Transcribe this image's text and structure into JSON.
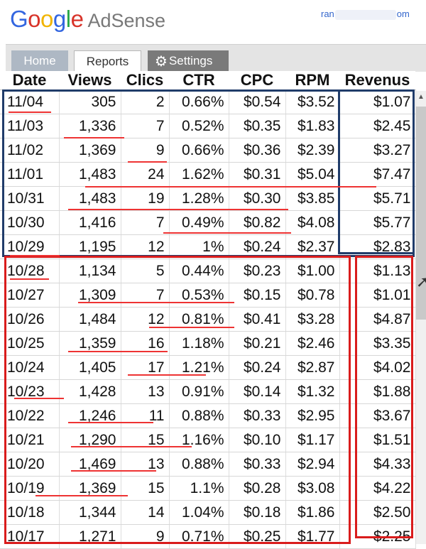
{
  "app": {
    "logo_letters": [
      "G",
      "o",
      "o",
      "g",
      "l",
      "e"
    ],
    "product": "AdSense",
    "account_prefix": "ran",
    "account_suffix": "om"
  },
  "tabs": [
    {
      "label": "Home",
      "state": "inactive"
    },
    {
      "label": "Reports",
      "state": "active"
    },
    {
      "label": "Settings",
      "state": "inactive",
      "icon": "gear-icon"
    }
  ],
  "table": {
    "columns": [
      "Date",
      "Views",
      "Clics",
      "CTR",
      "CPC",
      "RPM",
      "Revenus"
    ],
    "rows": [
      [
        "11/04",
        "305",
        "2",
        "0.66%",
        "$0.54",
        "$3.52",
        "$1.07"
      ],
      [
        "11/03",
        "1,336",
        "7",
        "0.52%",
        "$0.35",
        "$1.83",
        "$2.45"
      ],
      [
        "11/02",
        "1,369",
        "9",
        "0.66%",
        "$0.36",
        "$2.39",
        "$3.27"
      ],
      [
        "11/01",
        "1,483",
        "24",
        "1.62%",
        "$0.31",
        "$5.04",
        "$7.47"
      ],
      [
        "10/31",
        "1,483",
        "19",
        "1.28%",
        "$0.30",
        "$3.85",
        "$5.71"
      ],
      [
        "10/30",
        "1,416",
        "7",
        "0.49%",
        "$0.82",
        "$4.08",
        "$5.77"
      ],
      [
        "10/29",
        "1,195",
        "12",
        "1%",
        "$0.24",
        "$2.37",
        "$2.83"
      ],
      [
        "10/28",
        "1,134",
        "5",
        "0.44%",
        "$0.23",
        "$1.00",
        "$1.13"
      ],
      [
        "10/27",
        "1,309",
        "7",
        "0.53%",
        "$0.15",
        "$0.78",
        "$1.01"
      ],
      [
        "10/26",
        "1,484",
        "12",
        "0.81%",
        "$0.41",
        "$3.28",
        "$4.87"
      ],
      [
        "10/25",
        "1,359",
        "16",
        "1.18%",
        "$0.21",
        "$2.46",
        "$3.35"
      ],
      [
        "10/24",
        "1,405",
        "17",
        "1.21%",
        "$0.24",
        "$2.87",
        "$4.02"
      ],
      [
        "10/23",
        "1,428",
        "13",
        "0.91%",
        "$0.14",
        "$1.32",
        "$1.88"
      ],
      [
        "10/22",
        "1,246",
        "11",
        "0.88%",
        "$0.33",
        "$2.95",
        "$3.67"
      ],
      [
        "10/21",
        "1,290",
        "15",
        "1.16%",
        "$0.10",
        "$1.17",
        "$1.51"
      ],
      [
        "10/20",
        "1,469",
        "13",
        "0.88%",
        "$0.33",
        "$2.94",
        "$4.33"
      ],
      [
        "10/19",
        "1,369",
        "15",
        "1.1%",
        "$0.28",
        "$3.08",
        "$4.22"
      ],
      [
        "10/18",
        "1,344",
        "14",
        "1.04%",
        "$0.18",
        "$1.86",
        "$2.50"
      ],
      [
        "10/17",
        "1,271",
        "9",
        "0.71%",
        "$0.25",
        "$1.77",
        "$2.25"
      ]
    ]
  },
  "colors": {
    "annotation_blue": "#203c6a",
    "annotation_red": "#d91c1c"
  }
}
